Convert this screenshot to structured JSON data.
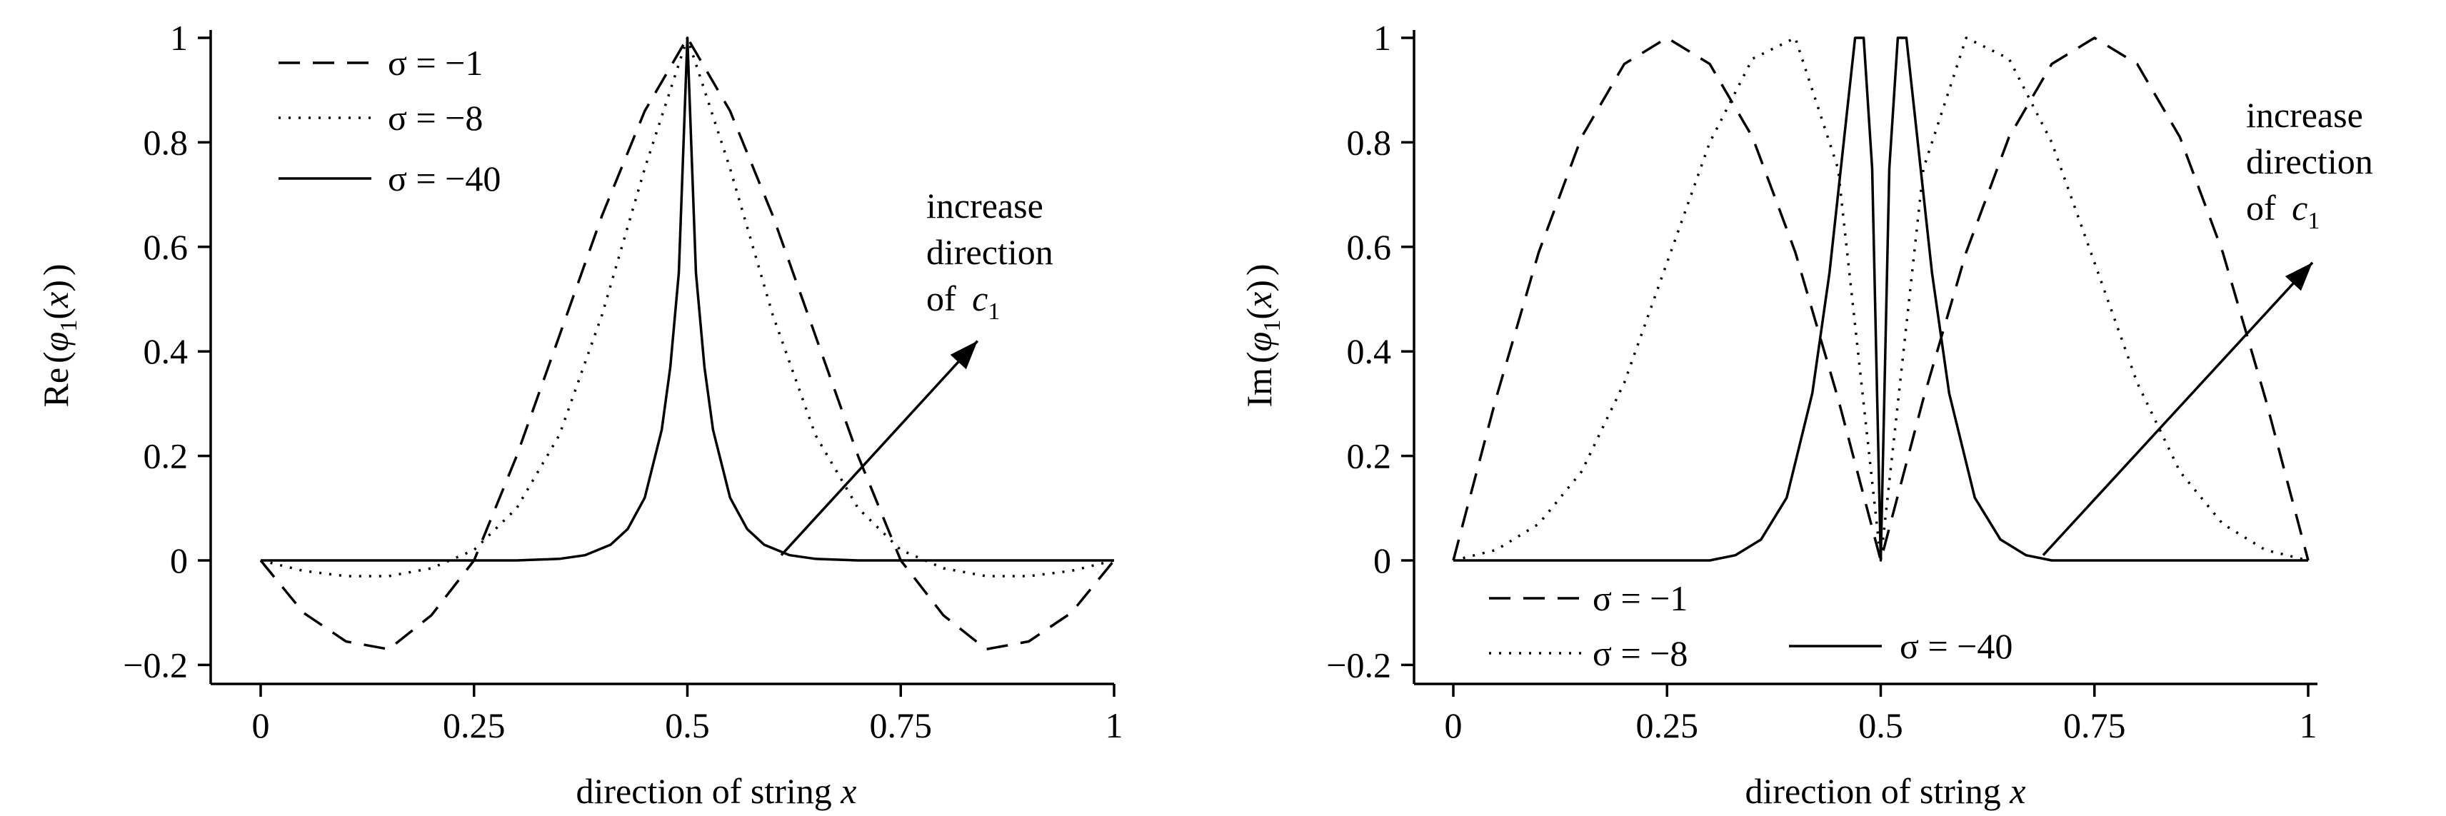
{
  "chart_data": [
    {
      "type": "line",
      "xlabel_prefix": "direction of string ",
      "xlabel_var": "x",
      "ylabel_parts": [
        "Re",
        "(",
        "φ",
        "1",
        "(",
        "x",
        ")",
        ")"
      ],
      "xlim": [
        0,
        1
      ],
      "ylim": [
        -0.2,
        1
      ],
      "xticks": [
        0,
        0.25,
        0.5,
        0.75,
        1
      ],
      "xtick_labels": [
        "0",
        "0.25",
        "0.5",
        "0.75",
        "1"
      ],
      "yticks": [
        -0.2,
        0,
        0.2,
        0.4,
        0.6,
        0.8,
        1
      ],
      "ytick_labels": [
        "−0.2",
        "0",
        "0.2",
        "0.4",
        "0.6",
        "0.8",
        "1"
      ],
      "grid": false,
      "legend_position": "top-left",
      "annotation": {
        "lines": [
          "increase",
          "direction",
          "of "
        ],
        "var": "c",
        "sub": "1",
        "arrow_from": [
          0.61,
          0.01
        ],
        "arrow_to": [
          0.84,
          0.42
        ]
      },
      "series": [
        {
          "name": "σ = −1",
          "legend_label": "σ = −1",
          "style": "dashed",
          "x": [
            0,
            0.05,
            0.1,
            0.15,
            0.2,
            0.25,
            0.3,
            0.35,
            0.4,
            0.45,
            0.5,
            0.55,
            0.6,
            0.65,
            0.7,
            0.75,
            0.8,
            0.85,
            0.9,
            0.95,
            1
          ],
          "y": [
            0,
            -0.1,
            -0.155,
            -0.17,
            -0.105,
            0,
            0.2,
            0.43,
            0.66,
            0.86,
            1,
            0.86,
            0.66,
            0.43,
            0.2,
            0,
            -0.105,
            -0.17,
            -0.155,
            -0.1,
            0
          ]
        },
        {
          "name": "σ = −8",
          "legend_label": "σ = −8",
          "style": "dotted",
          "x": [
            0,
            0.05,
            0.1,
            0.15,
            0.2,
            0.25,
            0.3,
            0.35,
            0.4,
            0.45,
            0.5,
            0.55,
            0.6,
            0.65,
            0.7,
            0.75,
            0.8,
            0.85,
            0.9,
            0.95,
            1
          ],
          "y": [
            0,
            -0.02,
            -0.03,
            -0.03,
            -0.015,
            0.02,
            0.1,
            0.24,
            0.47,
            0.75,
            1,
            0.75,
            0.47,
            0.24,
            0.1,
            0.02,
            -0.015,
            -0.03,
            -0.03,
            -0.02,
            0
          ]
        },
        {
          "name": "σ = −40",
          "legend_label": "σ = −40",
          "style": "solid",
          "x": [
            0,
            0.3,
            0.35,
            0.38,
            0.41,
            0.43,
            0.45,
            0.47,
            0.48,
            0.49,
            0.5,
            0.51,
            0.52,
            0.53,
            0.55,
            0.57,
            0.59,
            0.62,
            0.65,
            0.7,
            1
          ],
          "y": [
            0,
            0,
            0.003,
            0.01,
            0.03,
            0.06,
            0.12,
            0.25,
            0.37,
            0.55,
            1,
            0.55,
            0.37,
            0.25,
            0.12,
            0.06,
            0.03,
            0.01,
            0.003,
            0,
            0
          ]
        }
      ]
    },
    {
      "type": "line",
      "xlabel_prefix": "direction of string ",
      "xlabel_var": "x",
      "ylabel_parts": [
        "Im",
        "(",
        "φ",
        "1",
        "(",
        "x",
        ")",
        ")"
      ],
      "xlim": [
        0,
        1
      ],
      "ylim": [
        -0.2,
        1
      ],
      "xticks": [
        0,
        0.25,
        0.5,
        0.75,
        1
      ],
      "xtick_labels": [
        "0",
        "0.25",
        "0.5",
        "0.75",
        "1"
      ],
      "yticks": [
        -0.2,
        0,
        0.2,
        0.4,
        0.6,
        0.8,
        1
      ],
      "ytick_labels": [
        "−0.2",
        "0",
        "0.2",
        "0.4",
        "0.6",
        "0.8",
        "1"
      ],
      "grid": false,
      "legend_position": "bottom-left",
      "annotation": {
        "lines": [
          "increase",
          "direction",
          "of "
        ],
        "var": "c",
        "sub": "1",
        "arrow_from": [
          0.69,
          0.01
        ],
        "arrow_to": [
          1.005,
          0.57
        ]
      },
      "series": [
        {
          "name": "σ = −1",
          "legend_label": "σ = −1",
          "style": "dashed",
          "x": [
            0,
            0.05,
            0.1,
            0.15,
            0.2,
            0.25,
            0.3,
            0.35,
            0.4,
            0.45,
            0.5,
            0.55,
            0.6,
            0.65,
            0.7,
            0.75,
            0.8,
            0.85,
            0.9,
            0.95,
            1
          ],
          "y": [
            0,
            0.31,
            0.59,
            0.81,
            0.95,
            1,
            0.95,
            0.81,
            0.59,
            0.31,
            0,
            0.31,
            0.59,
            0.81,
            0.95,
            1,
            0.95,
            0.81,
            0.59,
            0.31,
            0
          ]
        },
        {
          "name": "σ = −8",
          "legend_label": "σ = −8",
          "style": "dotted",
          "x": [
            0,
            0.05,
            0.1,
            0.15,
            0.2,
            0.25,
            0.3,
            0.35,
            0.4,
            0.45,
            0.5,
            0.55,
            0.6,
            0.65,
            0.7,
            0.75,
            0.8,
            0.85,
            0.9,
            0.95,
            1
          ],
          "y": [
            0,
            0.02,
            0.07,
            0.17,
            0.34,
            0.57,
            0.8,
            0.96,
            1,
            0.75,
            0,
            0.75,
            1,
            0.96,
            0.8,
            0.57,
            0.34,
            0.17,
            0.07,
            0.02,
            0
          ]
        },
        {
          "name": "σ = −40",
          "legend_label": "σ = −40",
          "style": "solid",
          "x": [
            0,
            0.3,
            0.33,
            0.36,
            0.39,
            0.42,
            0.44,
            0.46,
            0.47,
            0.48,
            0.49,
            0.5,
            0.51,
            0.52,
            0.53,
            0.54,
            0.56,
            0.58,
            0.61,
            0.64,
            0.67,
            0.7,
            1
          ],
          "y": [
            0,
            0,
            0.01,
            0.04,
            0.12,
            0.32,
            0.55,
            0.85,
            1,
            1,
            0.75,
            0,
            0.75,
            1,
            1,
            0.85,
            0.55,
            0.32,
            0.12,
            0.04,
            0.01,
            0,
            0
          ]
        }
      ]
    }
  ]
}
